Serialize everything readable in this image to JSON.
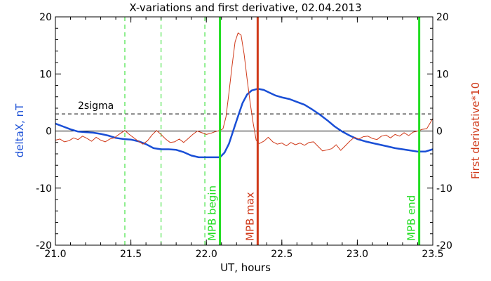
{
  "chart_data": {
    "type": "line",
    "title": "X-variations and first derivative, 02.04.2013",
    "xlabel": "UT, hours",
    "ylabel_left": "deltaX, nT",
    "ylabel_right": "First derivative*10",
    "xlim": [
      21.0,
      23.5
    ],
    "ylim": [
      -20,
      20
    ],
    "x_ticks": [
      21.0,
      21.5,
      22.0,
      22.5,
      23.0,
      23.5
    ],
    "x_tick_labels": [
      "21.0",
      "21.5",
      "22.0",
      "22.5",
      "23.0",
      "23.5"
    ],
    "y_ticks": [
      -20,
      -10,
      0,
      10,
      20
    ],
    "y_tick_labels": [
      "-20",
      "-10",
      "0",
      "10",
      "20"
    ],
    "colors": {
      "deltaX": "#1a4fd6",
      "derivative": "#d03a1a",
      "mpb": "#22dd22",
      "mpb_max": "#d03a1a",
      "left_label": "#1a4fd6",
      "right_label": "#d03a1a"
    },
    "threshold": {
      "label": "2sigma",
      "value": 3.0
    },
    "zero_line": 0,
    "dashed_vlines": [
      21.46,
      21.7,
      21.99
    ],
    "events": [
      {
        "label": "MPB begin",
        "x": 22.09,
        "kind": "mpb"
      },
      {
        "label": "MPB max",
        "x": 22.34,
        "kind": "mpb_max"
      },
      {
        "label": "MPB end",
        "x": 23.41,
        "kind": "mpb"
      }
    ],
    "series": [
      {
        "name": "deltaX",
        "axis": "left",
        "x": [
          21.0,
          21.05,
          21.1,
          21.15,
          21.2,
          21.25,
          21.3,
          21.35,
          21.4,
          21.45,
          21.5,
          21.55,
          21.6,
          21.65,
          21.7,
          21.75,
          21.8,
          21.85,
          21.9,
          21.95,
          22.0,
          22.05,
          22.09,
          22.12,
          22.15,
          22.18,
          22.21,
          22.24,
          22.27,
          22.3,
          22.34,
          22.38,
          22.42,
          22.46,
          22.5,
          22.55,
          22.6,
          22.65,
          22.7,
          22.75,
          22.8,
          22.85,
          22.9,
          22.95,
          23.0,
          23.05,
          23.1,
          23.15,
          23.2,
          23.25,
          23.3,
          23.35,
          23.4,
          23.45,
          23.5
        ],
        "y": [
          1.3,
          0.8,
          0.3,
          -0.1,
          -0.2,
          -0.3,
          -0.5,
          -0.8,
          -1.2,
          -1.4,
          -1.5,
          -1.8,
          -2.3,
          -3.0,
          -3.2,
          -3.2,
          -3.3,
          -3.7,
          -4.3,
          -4.6,
          -4.6,
          -4.6,
          -4.6,
          -3.8,
          -2.2,
          0.2,
          2.6,
          4.9,
          6.4,
          7.1,
          7.4,
          7.2,
          6.7,
          6.2,
          5.9,
          5.6,
          5.1,
          4.6,
          3.8,
          2.9,
          1.9,
          0.8,
          -0.1,
          -0.8,
          -1.4,
          -1.8,
          -2.1,
          -2.4,
          -2.7,
          -3.0,
          -3.2,
          -3.4,
          -3.6,
          -3.6,
          -3.2
        ]
      },
      {
        "name": "First derivative*10",
        "axis": "right",
        "x": [
          21.0,
          21.03,
          21.06,
          21.09,
          21.12,
          21.15,
          21.18,
          21.21,
          21.24,
          21.27,
          21.3,
          21.33,
          21.36,
          21.39,
          21.42,
          21.46,
          21.49,
          21.52,
          21.55,
          21.58,
          21.61,
          21.64,
          21.67,
          21.7,
          21.73,
          21.76,
          21.79,
          21.82,
          21.85,
          21.88,
          21.91,
          21.94,
          21.97,
          22.0,
          22.03,
          22.06,
          22.09,
          22.11,
          22.13,
          22.15,
          22.17,
          22.19,
          22.21,
          22.23,
          22.25,
          22.27,
          22.29,
          22.31,
          22.33,
          22.35,
          22.38,
          22.41,
          22.44,
          22.47,
          22.5,
          22.53,
          22.56,
          22.59,
          22.62,
          22.65,
          22.68,
          22.71,
          22.74,
          22.77,
          22.8,
          22.83,
          22.86,
          22.89,
          22.92,
          22.95,
          22.98,
          23.01,
          23.04,
          23.07,
          23.1,
          23.13,
          23.16,
          23.19,
          23.22,
          23.25,
          23.28,
          23.31,
          23.34,
          23.37,
          23.4,
          23.43,
          23.46,
          23.5
        ],
        "y": [
          -1.6,
          -1.4,
          -1.9,
          -1.7,
          -1.2,
          -1.5,
          -0.9,
          -1.3,
          -1.8,
          -1.1,
          -1.6,
          -1.9,
          -1.4,
          -1.2,
          -0.6,
          0.1,
          -0.6,
          -1.2,
          -1.8,
          -2.3,
          -1.7,
          -0.7,
          0.1,
          -0.6,
          -1.4,
          -2.0,
          -1.9,
          -1.4,
          -2.0,
          -1.3,
          -0.6,
          0.0,
          -0.3,
          -0.6,
          -0.4,
          -0.1,
          0.1,
          0.4,
          2.5,
          6.8,
          11.4,
          15.6,
          17.2,
          16.8,
          13.5,
          9.1,
          5.0,
          1.4,
          -1.6,
          -2.2,
          -1.8,
          -1.1,
          -1.9,
          -2.3,
          -2.1,
          -2.6,
          -2.0,
          -2.4,
          -2.1,
          -2.5,
          -2.0,
          -1.9,
          -2.7,
          -3.5,
          -3.3,
          -3.1,
          -2.4,
          -3.4,
          -2.6,
          -1.8,
          -1.1,
          -1.4,
          -1.0,
          -0.9,
          -1.3,
          -1.5,
          -0.9,
          -0.7,
          -1.2,
          -0.6,
          -0.9,
          -0.3,
          -0.8,
          -0.2,
          0.0,
          0.3,
          0.4,
          2.2
        ]
      }
    ]
  }
}
